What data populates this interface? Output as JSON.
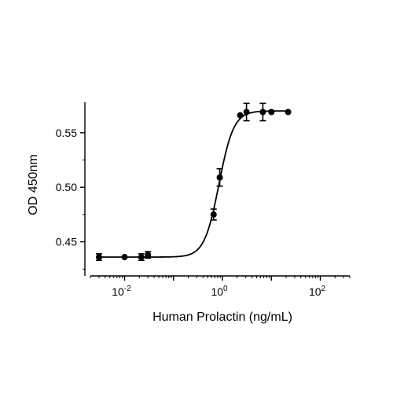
{
  "chart_data": {
    "type": "scatter",
    "title": "",
    "xlabel": "Human Prolactin (ng/mL)",
    "ylabel": "OD 450nm",
    "xscale": "log",
    "xlim": [
      0.002,
      400
    ],
    "ylim": [
      0.418,
      0.578
    ],
    "x_ticks": [
      {
        "value": 0.01,
        "base": "10",
        "exp": "-2"
      },
      {
        "value": 1,
        "base": "10",
        "exp": "0"
      },
      {
        "value": 100,
        "base": "10",
        "exp": "2"
      }
    ],
    "y_ticks": [
      {
        "value": 0.45,
        "label": "0.45"
      },
      {
        "value": 0.5,
        "label": "0.50"
      },
      {
        "value": 0.55,
        "label": "0.55"
      }
    ],
    "grid": false,
    "legend": "none",
    "series": [
      {
        "x": [
          0.003,
          0.01,
          0.022,
          0.03,
          0.66,
          0.88,
          2.3,
          3.1,
          6.7,
          10,
          22
        ],
        "y": [
          0.436,
          0.436,
          0.436,
          0.438,
          0.475,
          0.509,
          0.566,
          0.569,
          0.569,
          0.569,
          0.569
        ],
        "err": [
          0.003,
          0.0,
          0.003,
          0.003,
          0.005,
          0.008,
          0.0,
          0.008,
          0.008,
          0.0,
          0.0
        ]
      }
    ],
    "fit": {
      "bottom": 0.436,
      "top": 0.57,
      "ec50": 0.85,
      "hill": 2.9
    }
  }
}
